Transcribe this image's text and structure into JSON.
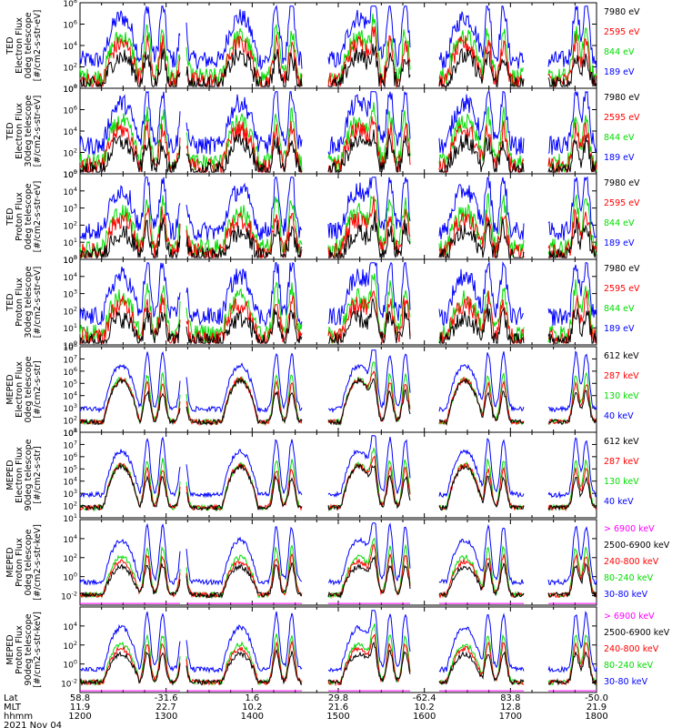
{
  "figure": {
    "date": "2021 Nov 04",
    "footer_row_labels": [
      "Lat",
      "MLT",
      "hhmm"
    ],
    "lat_ticks": [
      "58.8",
      "-31.6",
      "1.6",
      "29.8",
      "-62.4",
      "83.8",
      "-50.0"
    ],
    "mlt_ticks": [
      "11.9",
      "22.7",
      "10.2",
      "21.6",
      "10.2",
      "12.8",
      "21.9"
    ],
    "time_ticks": [
      "1200",
      "1300",
      "1400",
      "1500",
      "1600",
      "1700",
      "1800"
    ]
  },
  "colors": {
    "black": "#000000",
    "red": "#ff0000",
    "green": "#00dd00",
    "blue": "#0000ff",
    "magenta": "#ff00ff"
  },
  "chart_data": [
    {
      "type": "line",
      "ylabel": [
        "TED",
        "Electron Flux",
        "0deg telescope",
        "[#/cm2-s-str-eV]"
      ],
      "yscale": "log",
      "ylim_exp": [
        0,
        8
      ],
      "yticks": [
        {
          "base": "10",
          "exp": "0"
        },
        {
          "base": "10",
          "exp": "2"
        },
        {
          "base": "10",
          "exp": "4"
        },
        {
          "base": "10",
          "exp": "6"
        },
        {
          "base": "10",
          "exp": "8"
        }
      ],
      "series": [
        {
          "name": "7980 eV",
          "color": "black"
        },
        {
          "name": "2595 eV",
          "color": "red"
        },
        {
          "name": "844 eV",
          "color": "green"
        },
        {
          "name": "189 eV",
          "color": "blue"
        }
      ]
    },
    {
      "type": "line",
      "ylabel": [
        "TED",
        "Electron Flux",
        "30deg telescope",
        "[#/cm2-s-str-eV]"
      ],
      "yscale": "log",
      "ylim_exp": [
        0,
        8
      ],
      "yticks": [
        {
          "base": "10",
          "exp": "0"
        },
        {
          "base": "10",
          "exp": "2"
        },
        {
          "base": "10",
          "exp": "4"
        },
        {
          "base": "10",
          "exp": "6"
        },
        {
          "base": "10",
          "exp": "8"
        }
      ],
      "series": [
        {
          "name": "7980 eV",
          "color": "black"
        },
        {
          "name": "2595 eV",
          "color": "red"
        },
        {
          "name": "844 eV",
          "color": "green"
        },
        {
          "name": "189 eV",
          "color": "blue"
        }
      ]
    },
    {
      "type": "line",
      "ylabel": [
        "TED",
        "Proton Flux",
        "0deg telescope",
        "[#/cm2-s-str-eV]"
      ],
      "yscale": "log",
      "ylim_exp": [
        0,
        5
      ],
      "yticks": [
        {
          "base": "10",
          "exp": "0"
        },
        {
          "base": "10",
          "exp": "1"
        },
        {
          "base": "10",
          "exp": "2"
        },
        {
          "base": "10",
          "exp": "3"
        },
        {
          "base": "10",
          "exp": "4"
        },
        {
          "base": "10",
          "exp": "5"
        }
      ],
      "series": [
        {
          "name": "7980 eV",
          "color": "black"
        },
        {
          "name": "2595 eV",
          "color": "red"
        },
        {
          "name": "844 eV",
          "color": "green"
        },
        {
          "name": "189 eV",
          "color": "blue"
        }
      ]
    },
    {
      "type": "line",
      "ylabel": [
        "TED",
        "Proton Flux",
        "30deg telescope",
        "[#/cm2-s-str-eV]"
      ],
      "yscale": "log",
      "ylim_exp": [
        0,
        5
      ],
      "yticks": [
        {
          "base": "10",
          "exp": "0"
        },
        {
          "base": "10",
          "exp": "1"
        },
        {
          "base": "10",
          "exp": "2"
        },
        {
          "base": "10",
          "exp": "3"
        },
        {
          "base": "10",
          "exp": "4"
        },
        {
          "base": "10",
          "exp": "5"
        }
      ],
      "series": [
        {
          "name": "7980 eV",
          "color": "black"
        },
        {
          "name": "2595 eV",
          "color": "red"
        },
        {
          "name": "844 eV",
          "color": "green"
        },
        {
          "name": "189 eV",
          "color": "blue"
        }
      ]
    },
    {
      "type": "line",
      "ylabel": [
        "MEPED",
        "Electron Flux",
        "0deg telescope",
        "[#/cm2-s-str]"
      ],
      "yscale": "log",
      "ylim_exp": [
        1,
        8
      ],
      "yticks": [
        {
          "base": "10",
          "exp": "1"
        },
        {
          "base": "10",
          "exp": "2"
        },
        {
          "base": "10",
          "exp": "3"
        },
        {
          "base": "10",
          "exp": "4"
        },
        {
          "base": "10",
          "exp": "5"
        },
        {
          "base": "10",
          "exp": "6"
        },
        {
          "base": "10",
          "exp": "7"
        },
        {
          "base": "10",
          "exp": "8"
        }
      ],
      "series": [
        {
          "name": "612 keV",
          "color": "black"
        },
        {
          "name": "287 keV",
          "color": "red"
        },
        {
          "name": "130 keV",
          "color": "green"
        },
        {
          "name": "40 keV",
          "color": "blue"
        }
      ]
    },
    {
      "type": "line",
      "ylabel": [
        "MEPED",
        "Electron Flux",
        "90deg telescope",
        "[#/cm2-s-str]"
      ],
      "yscale": "log",
      "ylim_exp": [
        1,
        8
      ],
      "yticks": [
        {
          "base": "10",
          "exp": "1"
        },
        {
          "base": "10",
          "exp": "2"
        },
        {
          "base": "10",
          "exp": "3"
        },
        {
          "base": "10",
          "exp": "4"
        },
        {
          "base": "10",
          "exp": "5"
        },
        {
          "base": "10",
          "exp": "6"
        },
        {
          "base": "10",
          "exp": "7"
        },
        {
          "base": "10",
          "exp": "8"
        }
      ],
      "series": [
        {
          "name": "612 keV",
          "color": "black"
        },
        {
          "name": "287 keV",
          "color": "red"
        },
        {
          "name": "130 keV",
          "color": "green"
        },
        {
          "name": "40 keV",
          "color": "blue"
        }
      ]
    },
    {
      "type": "line",
      "ylabel": [
        "MEPED",
        "Proton Flux",
        "0deg telescope",
        "[#/cm2-s-str-keV]"
      ],
      "yscale": "log",
      "ylim_exp": [
        -3,
        6
      ],
      "yticks": [
        {
          "base": "10",
          "exp": "-2"
        },
        {
          "base": "10",
          "exp": "0"
        },
        {
          "base": "10",
          "exp": "2"
        },
        {
          "base": "10",
          "exp": "4"
        }
      ],
      "series": [
        {
          "name": "> 6900 keV",
          "color": "magenta"
        },
        {
          "name": "2500-6900 keV",
          "color": "black"
        },
        {
          "name": "240-800 keV",
          "color": "red"
        },
        {
          "name": "80-240 keV",
          "color": "green"
        },
        {
          "name": "30-80 keV",
          "color": "blue"
        }
      ]
    },
    {
      "type": "line",
      "ylabel": [
        "MEPED",
        "Proton Flux",
        "90deg telescope",
        "[#/cm2-s-str-keV]"
      ],
      "yscale": "log",
      "ylim_exp": [
        -3,
        6
      ],
      "yticks": [
        {
          "base": "10",
          "exp": "-2"
        },
        {
          "base": "10",
          "exp": "0"
        },
        {
          "base": "10",
          "exp": "2"
        },
        {
          "base": "10",
          "exp": "4"
        }
      ],
      "series": [
        {
          "name": "> 6900 keV",
          "color": "magenta"
        },
        {
          "name": "2500-6900 keV",
          "color": "black"
        },
        {
          "name": "240-800 keV",
          "color": "red"
        },
        {
          "name": "80-240 keV",
          "color": "green"
        },
        {
          "name": "30-80 keV",
          "color": "blue"
        }
      ]
    }
  ]
}
